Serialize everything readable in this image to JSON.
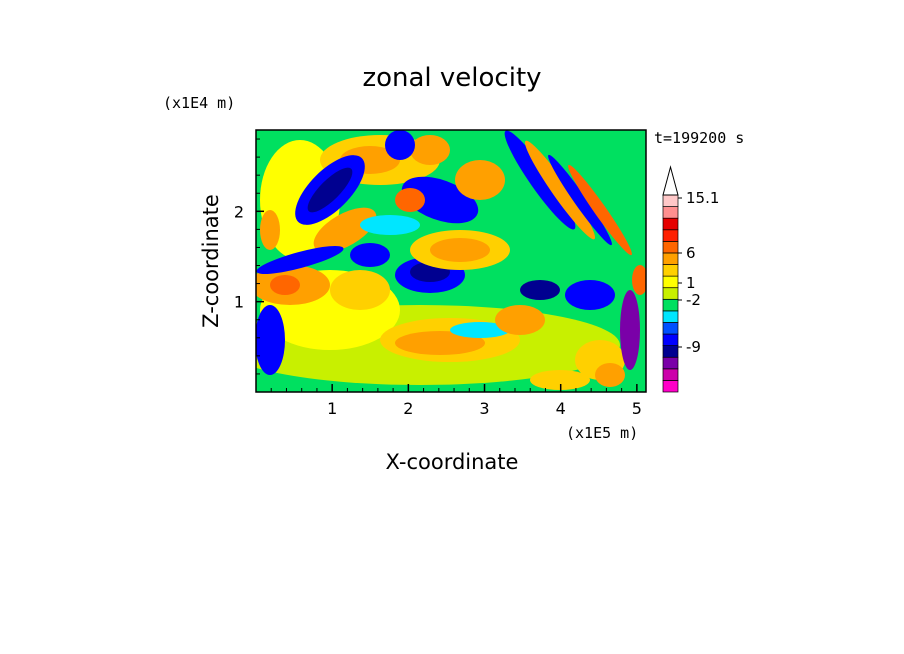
{
  "chart_data": {
    "type": "heatmap",
    "title": "zonal velocity",
    "xlabel": "X-coordinate",
    "ylabel": "Z-coordinate",
    "x_scale_label": "(x1E5 m)",
    "y_scale_label": "(x1E4 m)",
    "time_label": "t=199200 s",
    "x_ticks": [
      1,
      2,
      3,
      4,
      5
    ],
    "y_ticks": [
      1,
      2
    ],
    "xlim": [
      0,
      5.12
    ],
    "ylim": [
      0,
      2.9
    ],
    "colorbar": {
      "colors": [
        "#ff00c8",
        "#cc00aa",
        "#7a00a8",
        "#000090",
        "#0000ff",
        "#0050ff",
        "#00e6ff",
        "#00e060",
        "#c8f000",
        "#ffff00",
        "#ffd000",
        "#ffa000",
        "#ff6600",
        "#ff2000",
        "#e60000",
        "#ff9090",
        "#ffc8c8"
      ],
      "labeled_values": [
        "15.1",
        "6",
        "1",
        "-2",
        "-9"
      ],
      "extend_max": true
    },
    "field_note": "contour-filled velocity field, colors estimated"
  }
}
